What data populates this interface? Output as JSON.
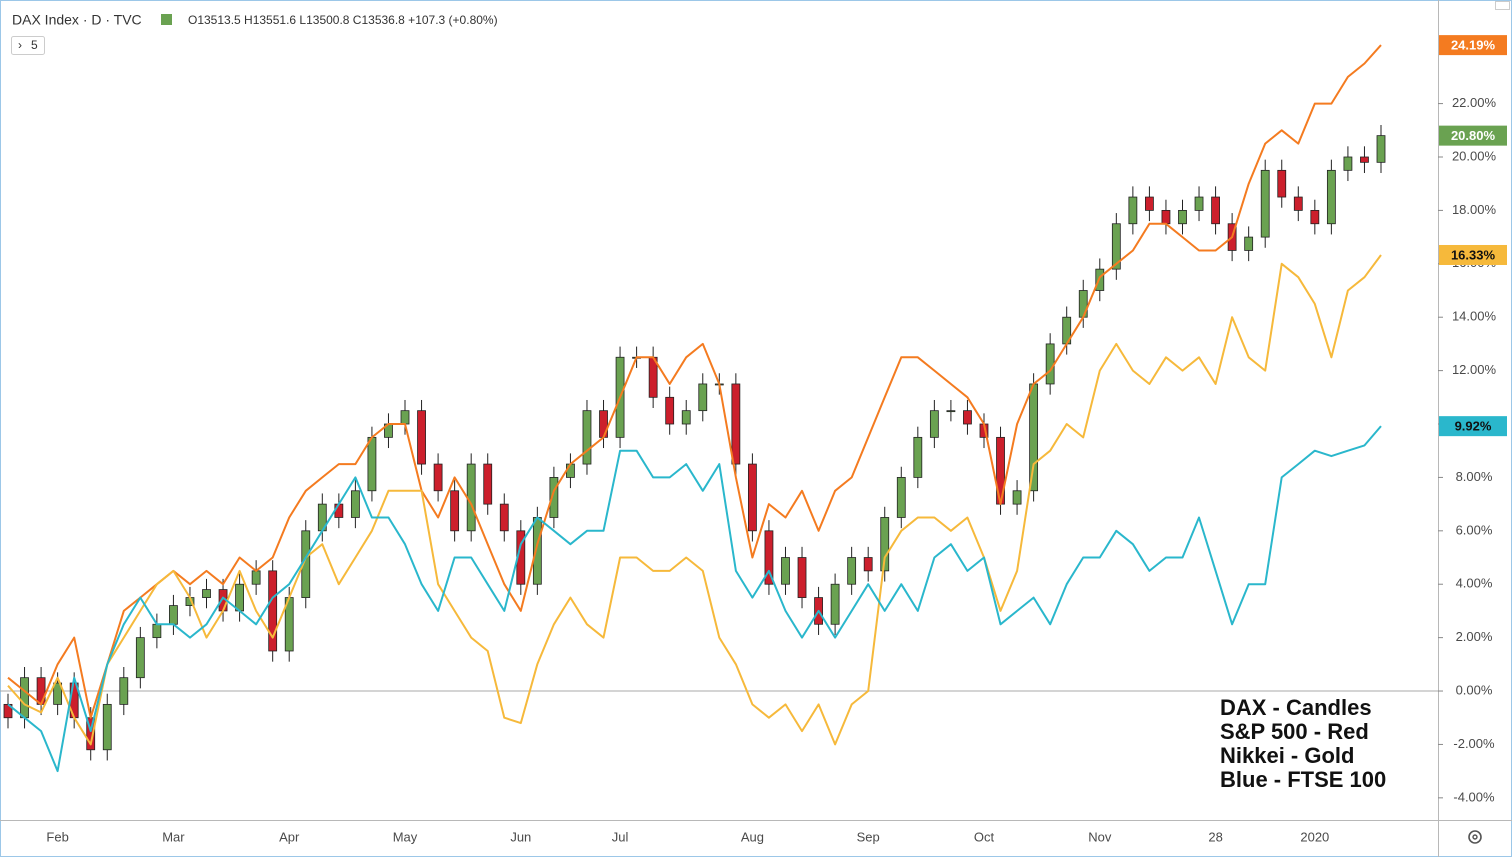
{
  "chart_data": {
    "type": "candlestick",
    "symbol": "DAX Index · D · TVC",
    "ohlc_text": "O13513.5 H13551.6 L13500.8 C13536.8 +107.3 (+0.80%)",
    "indicator_count": "5",
    "annotations": [
      "DAX - Candles",
      "S&P 500 - Red",
      "Nikkei - Gold",
      "Blue - FTSE 100"
    ],
    "categories": [
      null,
      null,
      null,
      "Feb",
      null,
      null,
      null,
      null,
      null,
      null,
      "Mar",
      null,
      null,
      null,
      null,
      null,
      null,
      "Apr",
      null,
      null,
      null,
      null,
      null,
      null,
      "May",
      null,
      null,
      null,
      null,
      null,
      null,
      "Jun",
      null,
      null,
      null,
      null,
      null,
      "Jul",
      null,
      null,
      null,
      null,
      null,
      null,
      null,
      "Aug",
      null,
      null,
      null,
      null,
      null,
      null,
      "Sep",
      null,
      null,
      null,
      null,
      null,
      null,
      "Oct",
      null,
      null,
      null,
      null,
      null,
      null,
      "Nov",
      null,
      null,
      null,
      null,
      null,
      null,
      "28",
      null,
      null,
      null,
      null,
      null,
      "2020",
      null,
      null,
      null,
      null
    ],
    "ylim": [
      -4.83,
      25.58
    ],
    "yticks": [
      {
        "value": -4,
        "label": "-4.00%"
      },
      {
        "value": -2,
        "label": "-2.00%"
      },
      {
        "value": 0,
        "label": "0.00%"
      },
      {
        "value": 2,
        "label": "2.00%"
      },
      {
        "value": 4,
        "label": "4.00%"
      },
      {
        "value": 6,
        "label": "6.00%"
      },
      {
        "value": 8,
        "label": "8.00%"
      },
      {
        "value": 10,
        "label": "10.00%"
      },
      {
        "value": 12,
        "label": "12.00%"
      },
      {
        "value": 14,
        "label": "14.00%"
      },
      {
        "value": 16,
        "label": "16.00%"
      },
      {
        "value": 18,
        "label": "18.00%"
      },
      {
        "value": 20,
        "label": "20.00%"
      },
      {
        "value": 22,
        "label": "22.00%"
      }
    ],
    "grid": false,
    "series": [
      {
        "type": "candlestick",
        "up_color": "#6aa251",
        "down_color": "#cc1f2c",
        "color": "#6aa251",
        "badge_text_color": "#ffffff",
        "open": [
          -0.5,
          -1,
          0.5,
          -0.5,
          0.3,
          -1,
          -2.2,
          -0.5,
          0.5,
          2,
          2.5,
          3.2,
          3.5,
          3.8,
          3,
          4,
          4.5,
          1.5,
          3.5,
          6,
          7,
          6.5,
          7.5,
          9.5,
          10,
          10.5,
          8.5,
          7.5,
          6,
          8.5,
          7,
          6,
          4,
          6.5,
          8,
          8.5,
          10.5,
          9.5,
          12.5,
          12.5,
          11,
          10,
          10.5,
          11.5,
          11.5,
          8.5,
          6,
          4,
          5,
          3.5,
          2.5,
          4,
          5,
          4.5,
          6.5,
          8,
          9.5,
          10.5,
          10.5,
          10,
          9.5,
          7,
          7.5,
          11.5,
          13,
          14,
          15,
          15.8,
          17.5,
          18.5,
          18,
          17.5,
          18,
          18.5,
          17.5,
          16.5,
          17,
          19.5,
          18.5,
          18,
          17.5,
          19.5,
          20,
          19.8
        ],
        "high": [
          -0.1,
          0.9,
          0.9,
          0.7,
          0.7,
          -0.6,
          -0.1,
          0.9,
          2.4,
          2.9,
          3.6,
          3.9,
          4.2,
          4.2,
          4.4,
          4.9,
          4.9,
          3.9,
          6.4,
          7.4,
          7.4,
          7.9,
          9.9,
          10.4,
          10.9,
          10.9,
          8.9,
          7.9,
          8.9,
          8.9,
          7.4,
          6.4,
          6.9,
          8.4,
          8.9,
          10.9,
          10.9,
          12.9,
          12.9,
          12.9,
          11.4,
          10.9,
          11.9,
          11.9,
          11.9,
          8.9,
          6.4,
          5.4,
          5.4,
          3.9,
          4.4,
          5.4,
          5.4,
          6.9,
          8.4,
          9.9,
          10.9,
          10.9,
          10.9,
          10.4,
          9.9,
          7.9,
          11.9,
          13.4,
          14.4,
          15.4,
          16.2,
          17.9,
          18.9,
          18.9,
          18.4,
          18.4,
          18.9,
          18.9,
          17.9,
          17.4,
          19.9,
          19.9,
          18.9,
          18.4,
          19.9,
          20.4,
          20.4,
          21.2
        ],
        "low": [
          -1.4,
          -1.4,
          -0.9,
          -0.9,
          -1.4,
          -2.6,
          -2.6,
          -0.9,
          0.1,
          1.6,
          2.1,
          2.8,
          3.1,
          2.6,
          2.6,
          3.6,
          1.1,
          1.1,
          3.1,
          5.6,
          6.1,
          6.1,
          7.1,
          9.1,
          9.6,
          8.1,
          7.1,
          5.6,
          5.6,
          6.6,
          5.6,
          3.6,
          3.6,
          6.1,
          7.6,
          8.1,
          9.1,
          9.1,
          12.1,
          10.6,
          9.6,
          9.6,
          10.1,
          11.1,
          8.1,
          5.6,
          3.6,
          3.6,
          3.1,
          2.1,
          2.1,
          3.6,
          4.1,
          4.1,
          6.1,
          7.6,
          9.1,
          10.1,
          9.6,
          9.1,
          6.6,
          6.6,
          7.1,
          11.1,
          12.6,
          13.6,
          14.6,
          15.4,
          17.1,
          17.6,
          17.1,
          17.1,
          17.6,
          17.1,
          16.1,
          16.1,
          16.6,
          18.1,
          17.6,
          17.1,
          17.1,
          19.1,
          19.4,
          19.4
        ],
        "close": [
          -1,
          0.5,
          -0.5,
          0.3,
          -1,
          -2.2,
          -0.5,
          0.5,
          2,
          2.5,
          3.2,
          3.5,
          3.8,
          3,
          4,
          4.5,
          1.5,
          3.5,
          6,
          7,
          6.5,
          7.5,
          9.5,
          10,
          10.5,
          8.5,
          7.5,
          6,
          8.5,
          7,
          6,
          4,
          6.5,
          8,
          8.5,
          10.5,
          9.5,
          12.5,
          12.5,
          11,
          10,
          10.5,
          11.5,
          11.5,
          8.5,
          6,
          4,
          5,
          3.5,
          2.5,
          4,
          5,
          4.5,
          6.5,
          8,
          9.5,
          10.5,
          10.5,
          10,
          9.5,
          7,
          7.5,
          11.5,
          13,
          14,
          15,
          15.8,
          17.5,
          18.5,
          18,
          17.5,
          18,
          18.5,
          17.5,
          16.5,
          17,
          19.5,
          18.5,
          18,
          17.5,
          19.5,
          20,
          19.8,
          20.8
        ],
        "value_labels": [
          null,
          null,
          null,
          null,
          null,
          null,
          null,
          null,
          null,
          null,
          null,
          null,
          null,
          null,
          null,
          null,
          null,
          null,
          null,
          null,
          null,
          null,
          null,
          null,
          null,
          null,
          null,
          null,
          null,
          null,
          null,
          null,
          null,
          null,
          null,
          null,
          null,
          null,
          null,
          null,
          null,
          null,
          null,
          null,
          null,
          null,
          null,
          null,
          null,
          null,
          null,
          null,
          null,
          null,
          null,
          null,
          null,
          null,
          null,
          null,
          null,
          null,
          null,
          null,
          null,
          null,
          null,
          null,
          null,
          null,
          null,
          null,
          null,
          null,
          null,
          null,
          null,
          null,
          null,
          null,
          null,
          null,
          null,
          "20.80%"
        ]
      },
      {
        "type": "line",
        "color": "#f47b20",
        "badge_text_color": "#ffffff",
        "values": [
          0.5,
          0,
          -0.5,
          1,
          2,
          -1,
          1,
          3,
          3.5,
          4,
          4.5,
          4,
          4.5,
          4,
          5,
          4.5,
          5,
          6.5,
          7.5,
          8,
          8.5,
          8.5,
          9.5,
          10,
          10,
          7.5,
          6.5,
          8,
          7,
          5.5,
          4,
          3,
          5.5,
          7.5,
          8.5,
          9,
          9.5,
          11,
          12.5,
          12.5,
          11.5,
          12.5,
          13,
          11.5,
          8,
          5,
          7,
          6.5,
          7.5,
          6,
          7.5,
          8,
          9.5,
          11,
          12.5,
          12.5,
          12,
          11.5,
          11,
          10,
          7,
          10,
          11.5,
          12,
          13,
          14,
          15.5,
          16,
          16.5,
          17.5,
          17.5,
          17,
          16.5,
          16.5,
          17,
          19,
          20.5,
          21,
          20.5,
          22,
          22,
          23,
          23.5,
          24.19
        ],
        "value_labels": [
          null,
          null,
          null,
          null,
          null,
          null,
          null,
          null,
          null,
          null,
          null,
          null,
          null,
          null,
          null,
          null,
          null,
          null,
          null,
          null,
          null,
          null,
          null,
          null,
          null,
          null,
          null,
          null,
          null,
          null,
          null,
          null,
          null,
          null,
          null,
          null,
          null,
          null,
          null,
          null,
          null,
          null,
          null,
          null,
          null,
          null,
          null,
          null,
          null,
          null,
          null,
          null,
          null,
          null,
          null,
          null,
          null,
          null,
          null,
          null,
          null,
          null,
          null,
          null,
          null,
          null,
          null,
          null,
          null,
          null,
          null,
          null,
          null,
          null,
          null,
          null,
          null,
          null,
          null,
          null,
          null,
          null,
          null,
          "24.19%"
        ]
      },
      {
        "type": "line",
        "color": "#f6b93b",
        "badge_text_color": "#111111",
        "values": [
          0.2,
          -0.5,
          -0.8,
          0.5,
          -1,
          -2,
          1,
          2,
          3,
          4,
          4.5,
          3.5,
          2,
          3,
          4.5,
          3,
          2,
          3.5,
          5,
          5.5,
          4,
          5,
          6,
          7.5,
          7.5,
          7.5,
          4,
          3,
          2,
          1.5,
          -1,
          -1.2,
          1,
          2.5,
          3.5,
          2.5,
          2,
          5,
          5,
          4.5,
          4.5,
          5,
          4.5,
          2,
          1,
          -0.5,
          -1,
          -0.5,
          -1.5,
          -0.5,
          -2,
          -0.5,
          0,
          5,
          6,
          6.5,
          6.5,
          6,
          6.5,
          5,
          3,
          4.5,
          8.5,
          9,
          10,
          9.5,
          12,
          13,
          12,
          11.5,
          12.5,
          12,
          12.5,
          11.5,
          14,
          12.5,
          12,
          16,
          15.5,
          14.5,
          12.5,
          15,
          15.5,
          16.33
        ],
        "value_labels": [
          null,
          null,
          null,
          null,
          null,
          null,
          null,
          null,
          null,
          null,
          null,
          null,
          null,
          null,
          null,
          null,
          null,
          null,
          null,
          null,
          null,
          null,
          null,
          null,
          null,
          null,
          null,
          null,
          null,
          null,
          null,
          null,
          null,
          null,
          null,
          null,
          null,
          null,
          null,
          null,
          null,
          null,
          null,
          null,
          null,
          null,
          null,
          null,
          null,
          null,
          null,
          null,
          null,
          null,
          null,
          null,
          null,
          null,
          null,
          null,
          null,
          null,
          null,
          null,
          null,
          null,
          null,
          null,
          null,
          null,
          null,
          null,
          null,
          null,
          null,
          null,
          null,
          null,
          null,
          null,
          null,
          null,
          null,
          "16.33%"
        ]
      },
      {
        "type": "line",
        "color": "#2ab7cc",
        "badge_text_color": "#111111",
        "values": [
          -0.5,
          -1,
          -1.5,
          -3,
          0.5,
          -1.5,
          1,
          2.5,
          3.5,
          2.5,
          2.5,
          2,
          2.5,
          3.5,
          3,
          2.5,
          3.5,
          4,
          5,
          6,
          7,
          8,
          6.5,
          6.5,
          5.5,
          4,
          3,
          5,
          5,
          4,
          3,
          5.5,
          6.5,
          6,
          5.5,
          6,
          6,
          9,
          9,
          8,
          8,
          8.5,
          7.5,
          8.5,
          4.5,
          3.5,
          4.5,
          3,
          2,
          3,
          2,
          3,
          4,
          3,
          4,
          3,
          5,
          5.5,
          4.5,
          5,
          2.5,
          3,
          3.5,
          2.5,
          4,
          5,
          5,
          6,
          5.5,
          4.5,
          5,
          5,
          6.5,
          4.5,
          2.5,
          4,
          4,
          8,
          8.5,
          9,
          8.8,
          9,
          9.2,
          9.92
        ],
        "value_labels": [
          null,
          null,
          null,
          null,
          null,
          null,
          null,
          null,
          null,
          null,
          null,
          null,
          null,
          null,
          null,
          null,
          null,
          null,
          null,
          null,
          null,
          null,
          null,
          null,
          null,
          null,
          null,
          null,
          null,
          null,
          null,
          null,
          null,
          null,
          null,
          null,
          null,
          null,
          null,
          null,
          null,
          null,
          null,
          null,
          null,
          null,
          null,
          null,
          null,
          null,
          null,
          null,
          null,
          null,
          null,
          null,
          null,
          null,
          null,
          null,
          null,
          null,
          null,
          null,
          null,
          null,
          null,
          null,
          null,
          null,
          null,
          null,
          null,
          null,
          null,
          null,
          null,
          null,
          null,
          null,
          null,
          null,
          null,
          "9.92%"
        ]
      }
    ]
  }
}
